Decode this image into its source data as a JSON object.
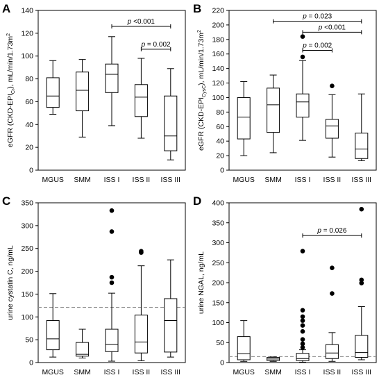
{
  "chart_data": [
    {
      "panel": "A",
      "type": "box",
      "ylabel": "eGFR (CKD-EPI[Cr]), mL/min/1.73m²",
      "ylabel_parts": [
        "eGFR (CKD-EPI",
        "Cr",
        "), mL/min/1.73m",
        "2"
      ],
      "categories": [
        "MGUS",
        "SMM",
        "ISS I",
        "ISS II",
        "ISS III"
      ],
      "ylim": [
        0,
        140
      ],
      "yticks": [
        0,
        20,
        40,
        60,
        80,
        100,
        120,
        140
      ],
      "boxes": [
        {
          "whisker_low": 49,
          "q1": 55,
          "median": 65,
          "q3": 81,
          "whisker_high": 96,
          "outliers": []
        },
        {
          "whisker_low": 29,
          "q1": 52,
          "median": 70,
          "q3": 86,
          "whisker_high": 97,
          "outliers": []
        },
        {
          "whisker_low": 39,
          "q1": 68,
          "median": 84,
          "q3": 93,
          "whisker_high": 117,
          "outliers": []
        },
        {
          "whisker_low": 28,
          "q1": 47,
          "median": 64,
          "q3": 75,
          "whisker_high": 98,
          "outliers": []
        },
        {
          "whisker_low": 9,
          "q1": 17,
          "median": 30,
          "q3": 65,
          "whisker_high": 89,
          "outliers": []
        }
      ],
      "significance": [
        {
          "from": 2,
          "to": 4,
          "y": 126,
          "label": "p <0.001"
        },
        {
          "from": 3,
          "to": 4,
          "y": 106,
          "label": "p = 0.002"
        }
      ],
      "reference_line": null
    },
    {
      "panel": "B",
      "type": "box",
      "ylabel": "eGFR (CKD-EPI[CysC]), mL/min/1.73m²",
      "ylabel_parts": [
        "eGFR (CKD-EPI",
        "CysC",
        "), mL/min/1.73m",
        "2"
      ],
      "categories": [
        "MGUS",
        "SMM",
        "ISS I",
        "ISS II",
        "ISS III"
      ],
      "ylim": [
        0,
        220
      ],
      "yticks": [
        0,
        20,
        40,
        60,
        80,
        100,
        120,
        140,
        160,
        180,
        200,
        220
      ],
      "boxes": [
        {
          "whisker_low": 20,
          "q1": 43,
          "median": 73,
          "q3": 100,
          "whisker_high": 122,
          "outliers": []
        },
        {
          "whisker_low": 24,
          "q1": 52,
          "median": 90,
          "q3": 113,
          "whisker_high": 131,
          "outliers": []
        },
        {
          "whisker_low": 41,
          "q1": 73,
          "median": 94,
          "q3": 105,
          "whisker_high": 151,
          "outliers": [
            156,
            184
          ]
        },
        {
          "whisker_low": 18,
          "q1": 44,
          "median": 61,
          "q3": 70,
          "whisker_high": 104,
          "outliers": [
            116
          ]
        },
        {
          "whisker_low": 13,
          "q1": 16,
          "median": 29,
          "q3": 51,
          "whisker_high": 105,
          "outliers": []
        }
      ],
      "significance": [
        {
          "from": 1,
          "to": 4,
          "y": 205,
          "label": "p = 0.023"
        },
        {
          "from": 2,
          "to": 4,
          "y": 190,
          "label": "p <0.001"
        },
        {
          "from": 2,
          "to": 3,
          "y": 165,
          "label": "p = 0.002"
        }
      ],
      "reference_line": null
    },
    {
      "panel": "C",
      "type": "box",
      "ylabel": "urine cystatin C, ng/mL",
      "ylabel_parts": [
        "urine cystatin C, ng/mL"
      ],
      "categories": [
        "MGUS",
        "SMM",
        "ISS I",
        "ISS II",
        "ISS III"
      ],
      "ylim": [
        0,
        350
      ],
      "yticks": [
        0,
        50,
        100,
        150,
        200,
        250,
        300,
        350
      ],
      "boxes": [
        {
          "whisker_low": 12,
          "q1": 28,
          "median": 52,
          "q3": 92,
          "whisker_high": 151,
          "outliers": []
        },
        {
          "whisker_low": 10,
          "q1": 14,
          "median": 18,
          "q3": 44,
          "whisker_high": 73,
          "outliers": []
        },
        {
          "whisker_low": 3,
          "q1": 24,
          "median": 40,
          "q3": 73,
          "whisker_high": 152,
          "outliers": [
            175,
            187,
            287,
            333
          ]
        },
        {
          "whisker_low": 4,
          "q1": 21,
          "median": 45,
          "q3": 104,
          "whisker_high": 212,
          "outliers": [
            241,
            244
          ]
        },
        {
          "whisker_low": 12,
          "q1": 23,
          "median": 92,
          "q3": 140,
          "whisker_high": 225,
          "outliers": []
        }
      ],
      "significance": [],
      "reference_line": 121
    },
    {
      "panel": "D",
      "type": "box",
      "ylabel": "urine NGAL, ng/mL",
      "ylabel_parts": [
        "urine NGAL, ng/mL"
      ],
      "categories": [
        "MGUS",
        "SMM",
        "ISS I",
        "ISS II",
        "ISS III"
      ],
      "ylim": [
        0,
        400
      ],
      "yticks": [
        0,
        50,
        100,
        150,
        200,
        250,
        300,
        350,
        400
      ],
      "boxes": [
        {
          "whisker_low": 3,
          "q1": 7,
          "median": 22,
          "q3": 65,
          "whisker_high": 105,
          "outliers": []
        },
        {
          "whisker_low": 3,
          "q1": 5,
          "median": 9,
          "q3": 13,
          "whisker_high": 14,
          "outliers": []
        },
        {
          "whisker_low": 1,
          "q1": 5,
          "median": 10,
          "q3": 23,
          "whisker_high": 32,
          "outliers": [
            38,
            47,
            58,
            78,
            93,
            105,
            115,
            131,
            279
          ]
        },
        {
          "whisker_low": 3,
          "q1": 10,
          "median": 24,
          "q3": 45,
          "whisker_high": 75,
          "outliers": [
            173,
            237
          ]
        },
        {
          "whisker_low": 7,
          "q1": 13,
          "median": 25,
          "q3": 68,
          "whisker_high": 140,
          "outliers": [
            199,
            207,
            384
          ]
        }
      ],
      "significance": [
        {
          "from": 2,
          "to": 4,
          "y": 318,
          "label": "p = 0.026"
        }
      ],
      "reference_line": 15
    }
  ],
  "layout": {
    "panels": [
      {
        "ox": 55,
        "oy": 15,
        "w": 212,
        "h": 230
      },
      {
        "ox": 330,
        "oy": 15,
        "w": 212,
        "h": 230
      },
      {
        "ox": 55,
        "oy": 292,
        "w": 212,
        "h": 230
      },
      {
        "ox": 330,
        "oy": 292,
        "w": 212,
        "h": 230
      }
    ],
    "box_width": 18,
    "cap_width": 10,
    "point_radius": 3.3
  }
}
